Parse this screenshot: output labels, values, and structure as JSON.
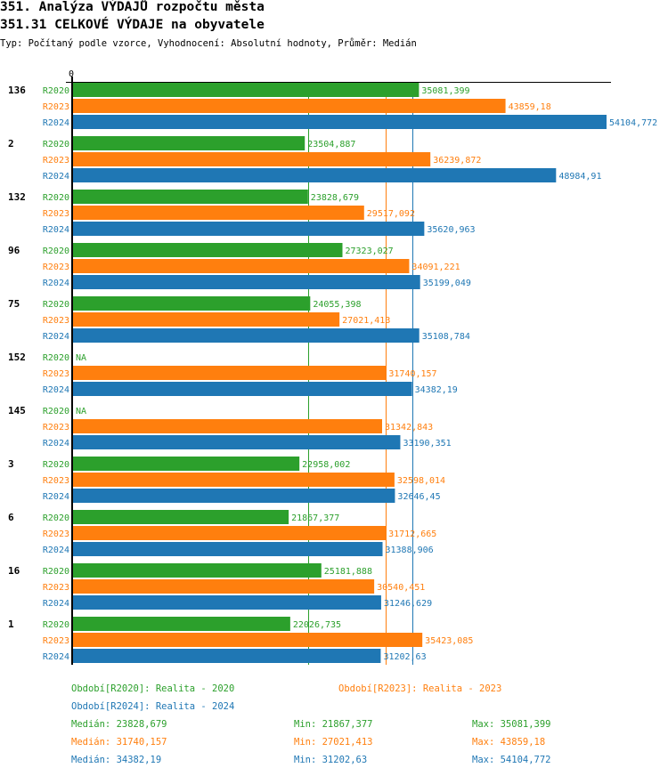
{
  "header": {
    "title": "351. Analýza VÝDAJŮ rozpočtu města",
    "subtitle": "351.31 CELKOVÉ VÝDAJE na obyvatele",
    "description": "Typ: Počítaný podle vzorce, Vyhodnocení: Absolutní hodnoty, Průměr: Medián"
  },
  "colors": {
    "R2020": "#2ca02c",
    "R2023": "#ff7f0e",
    "R2024": "#1f77b4"
  },
  "chart_data": {
    "type": "bar",
    "orientation": "horizontal",
    "title": "351.31 CELKOVÉ VÝDAJE na obyvatele",
    "x_tick_labels": [
      "0"
    ],
    "xlim": [
      0,
      54104.772
    ],
    "categories": [
      "136",
      "2",
      "132",
      "96",
      "75",
      "152",
      "145",
      "3",
      "6",
      "16",
      "1"
    ],
    "series": [
      {
        "name": "R2020",
        "values": [
          35081.399,
          23504.887,
          23828.679,
          27323.027,
          24055.398,
          null,
          null,
          22958.002,
          21867.377,
          25181.888,
          22026.735
        ],
        "labels": [
          "35081,399",
          "23504,887",
          "23828,679",
          "27323,027",
          "24055,398",
          "NA",
          "NA",
          "22958,002",
          "21867,377",
          "25181,888",
          "22026,735"
        ]
      },
      {
        "name": "R2023",
        "values": [
          43859.18,
          36239.872,
          29517.092,
          34091.221,
          27021.413,
          31740.157,
          31342.843,
          32598.014,
          31712.665,
          30540.451,
          35423.085
        ],
        "labels": [
          "43859,18",
          "36239,872",
          "29517,092",
          "34091,221",
          "27021,413",
          "31740,157",
          "31342,843",
          "32598,014",
          "31712,665",
          "30540,451",
          "35423,085"
        ]
      },
      {
        "name": "R2024",
        "values": [
          54104.772,
          48984.91,
          35620.963,
          35199.049,
          35108.784,
          34382.19,
          33190.351,
          32646.45,
          31388.906,
          31246.629,
          31202.63
        ],
        "labels": [
          "54104,772",
          "48984,91",
          "35620,963",
          "35199,049",
          "35108,784",
          "34382,19",
          "33190,351",
          "32646,45",
          "31388,906",
          "31246,629",
          "31202,63"
        ]
      }
    ],
    "medians": {
      "R2020": 23828.679,
      "R2023": 31740.157,
      "R2024": 34382.19
    },
    "legend": [
      "Období[R2020]: Realita - 2020",
      "Období[R2023]: Realita - 2023",
      "Období[R2024]: Realita - 2024"
    ],
    "stats": [
      {
        "median": "Medián: 23828,679",
        "min": "Min: 21867,377",
        "max": "Max: 35081,399"
      },
      {
        "median": "Medián: 31740,157",
        "min": "Min: 27021,413",
        "max": "Max: 43859,18"
      },
      {
        "median": "Medián: 34382,19",
        "min": "Min: 31202,63",
        "max": "Max: 54104,772"
      }
    ]
  }
}
